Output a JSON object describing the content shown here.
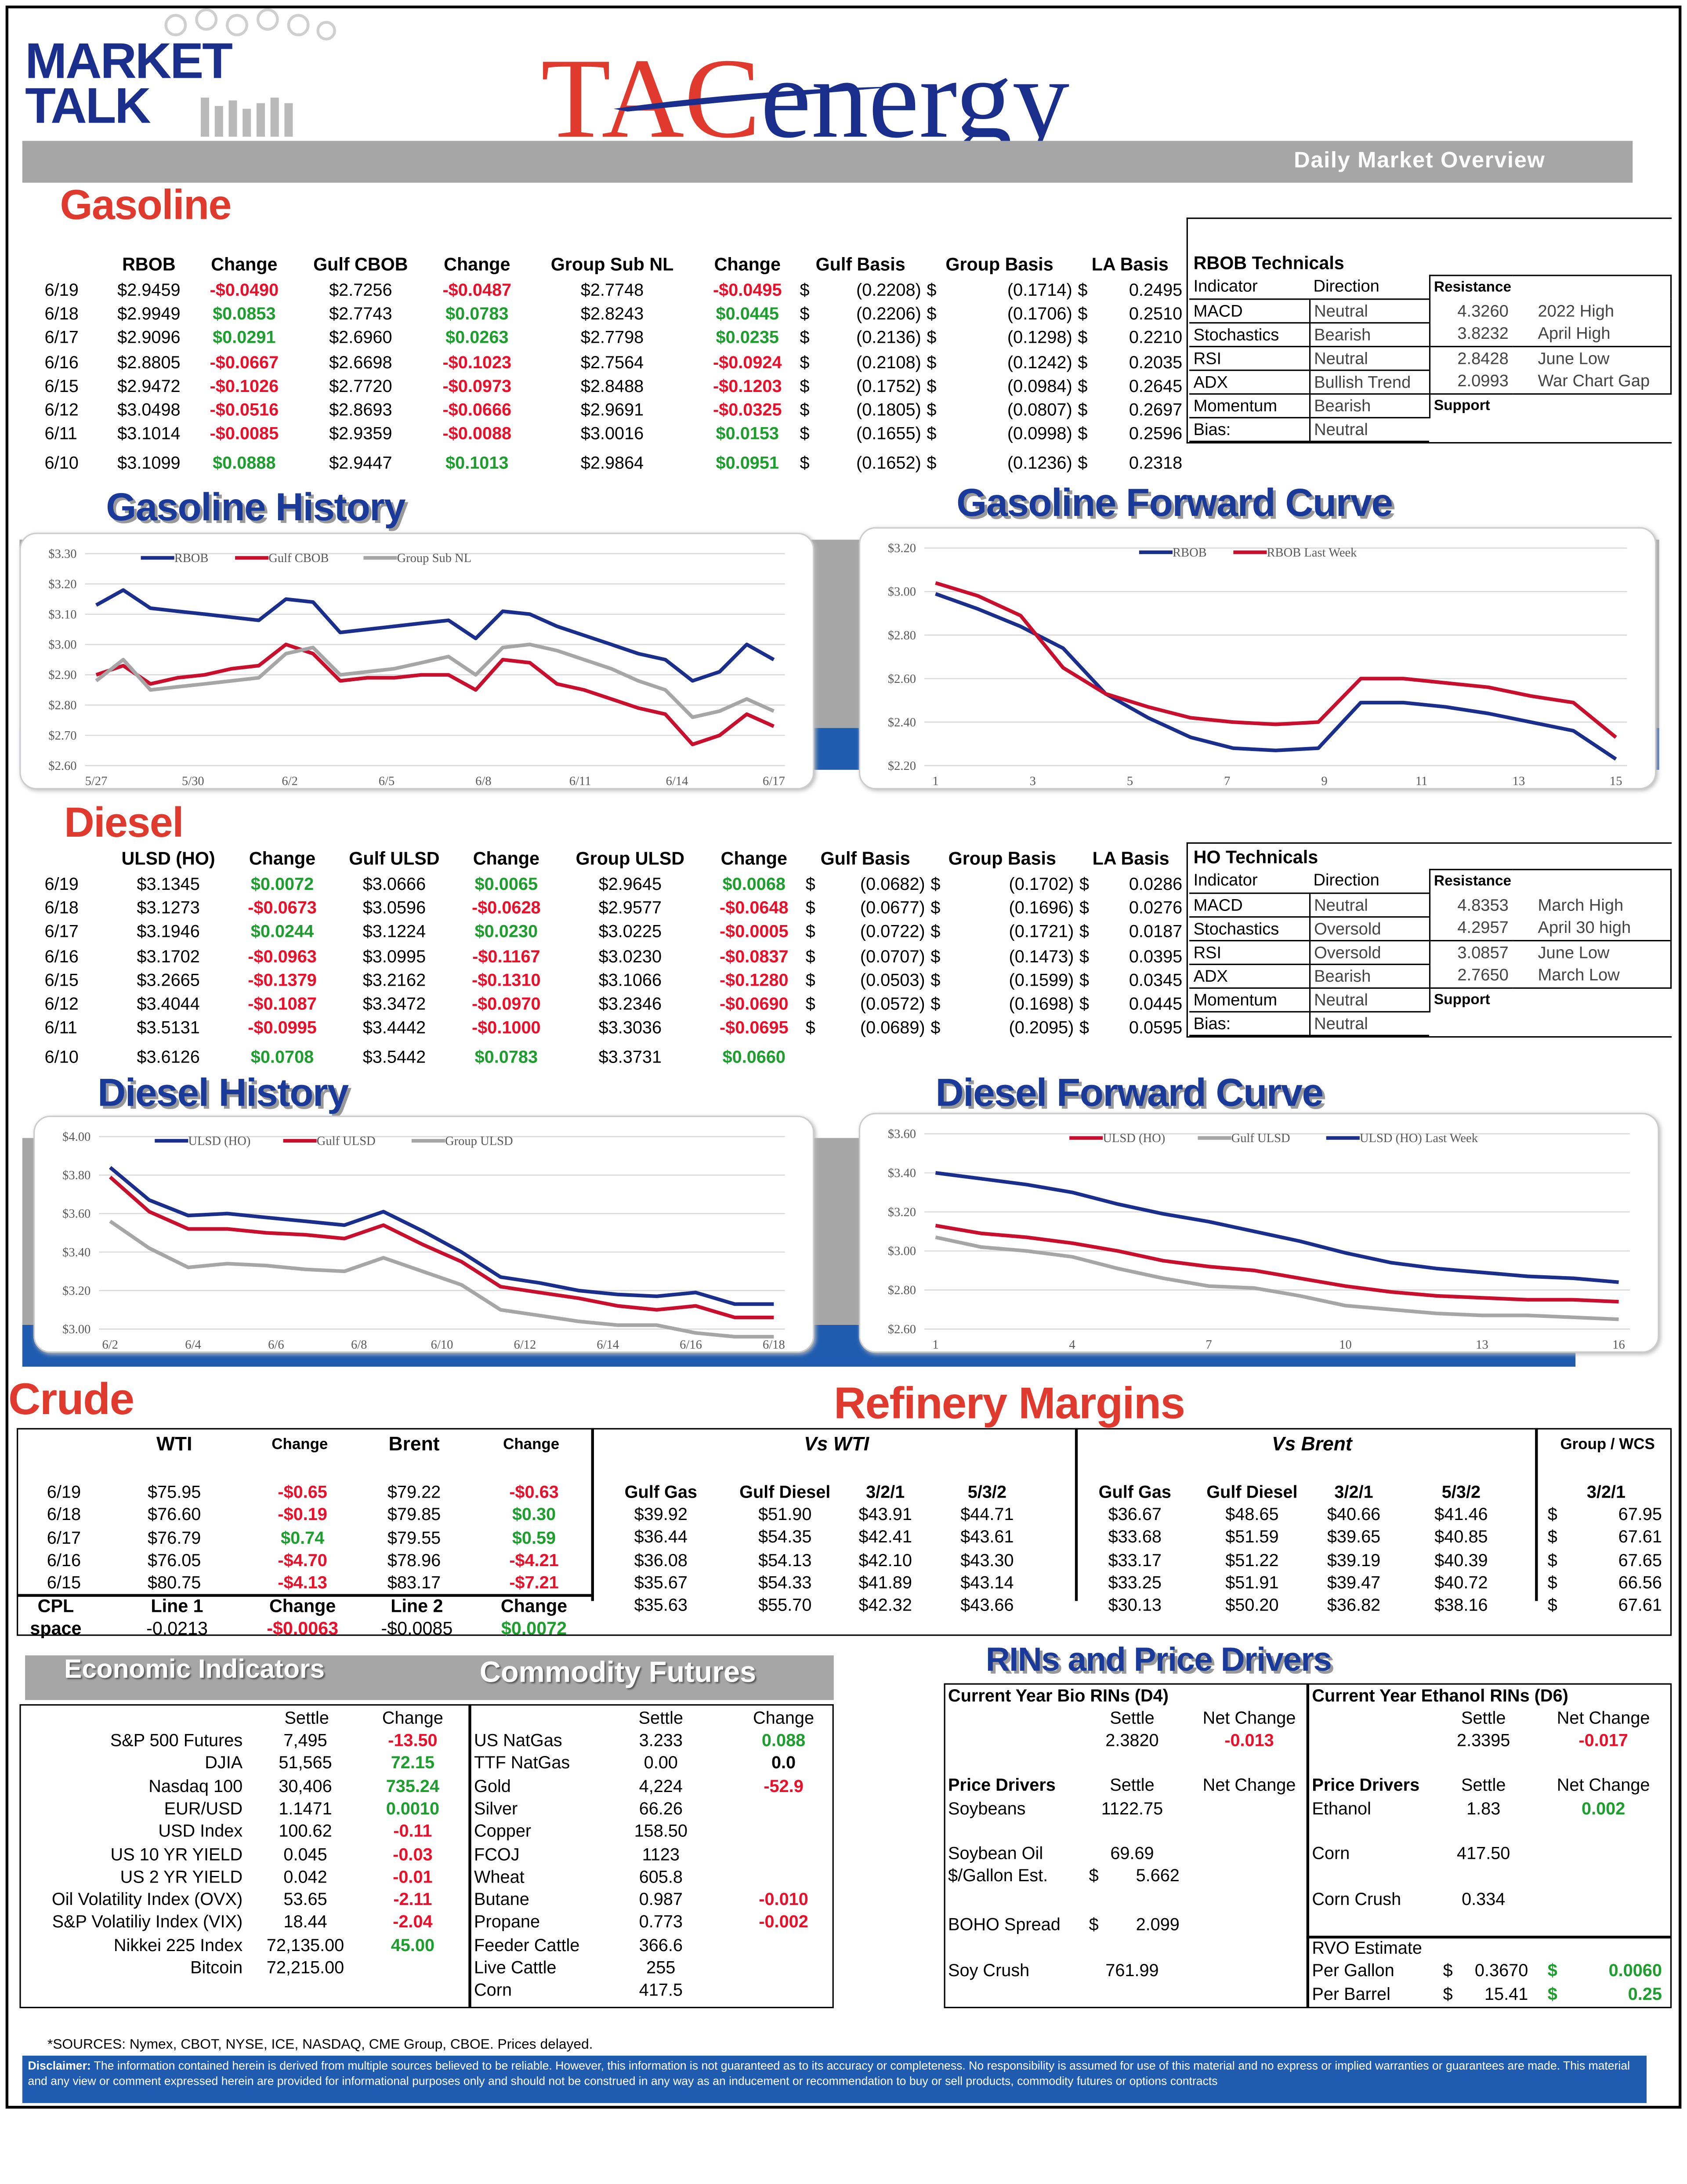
{
  "header": {
    "brand_line1": "MARKET",
    "brand_line2": "TALK",
    "logo_tac": "TAC",
    "logo_energy": "energy",
    "subtitle": "Daily Market Overview"
  },
  "sections": {
    "gasoline": "Gasoline",
    "gasoline_history": "Gasoline History",
    "gasoline_forward": "Gasoline Forward Curve",
    "diesel": "Diesel",
    "diesel_history": "Diesel History",
    "diesel_forward": "Diesel Forward Curve",
    "crude": "Crude",
    "refinery": "Refinery Margins",
    "econ": "Economic Indicators",
    "commod": "Commodity Futures",
    "rins": "RINs and Price Drivers"
  },
  "gasoline": {
    "headers": [
      "RBOB",
      "Change",
      "Gulf CBOB",
      "Change",
      "Group Sub NL",
      "Change",
      "Gulf Basis",
      "Group Basis",
      "LA Basis"
    ],
    "rows": [
      [
        "6/19",
        "$2.9459",
        "-$0.0490",
        "$2.7256",
        "-$0.0487",
        "$2.7748",
        "-$0.0495",
        "(0.2208)",
        "(0.1714)",
        "0.2495"
      ],
      [
        "6/18",
        "$2.9949",
        "$0.0853",
        "$2.7743",
        "$0.0783",
        "$2.8243",
        "$0.0445",
        "(0.2206)",
        "(0.1706)",
        "0.2510"
      ],
      [
        "6/17",
        "$2.9096",
        "$0.0291",
        "$2.6960",
        "$0.0263",
        "$2.7798",
        "$0.0235",
        "(0.2136)",
        "(0.1298)",
        "0.2210"
      ],
      [
        "6/16",
        "$2.8805",
        "-$0.0667",
        "$2.6698",
        "-$0.1023",
        "$2.7564",
        "-$0.0924",
        "(0.2108)",
        "(0.1242)",
        "0.2035"
      ],
      [
        "6/15",
        "$2.9472",
        "-$0.1026",
        "$2.7720",
        "-$0.0973",
        "$2.8488",
        "-$0.1203",
        "(0.1752)",
        "(0.0984)",
        "0.2645"
      ],
      [
        "6/12",
        "$3.0498",
        "-$0.0516",
        "$2.8693",
        "-$0.0666",
        "$2.9691",
        "-$0.0325",
        "(0.1805)",
        "(0.0807)",
        "0.2697"
      ],
      [
        "6/11",
        "$3.1014",
        "-$0.0085",
        "$2.9359",
        "-$0.0088",
        "$3.0016",
        "$0.0153",
        "(0.1655)",
        "(0.0998)",
        "0.2596"
      ],
      [
        "6/10",
        "$3.1099",
        "$0.0888",
        "$2.9447",
        "$0.1013",
        "$2.9864",
        "$0.0951",
        "(0.1652)",
        "(0.1236)",
        "0.2318"
      ]
    ],
    "tech_title": "RBOB Technicals",
    "tech_h": [
      "Indicator",
      "Direction",
      "Resistance",
      "Support"
    ],
    "tech": [
      [
        "MACD",
        "Neutral"
      ],
      [
        "Stochastics",
        "Bearish"
      ],
      [
        "RSI",
        "Neutral"
      ],
      [
        "ADX",
        "Bullish Trend"
      ],
      [
        "Momentum",
        "Bearish"
      ],
      [
        "Bias:",
        "Neutral"
      ]
    ],
    "levels": [
      [
        "4.3260",
        "2022 High"
      ],
      [
        "3.8232",
        "April High"
      ],
      [
        "2.8428",
        "June Low"
      ],
      [
        "2.0993",
        "War Chart Gap"
      ]
    ]
  },
  "diesel": {
    "headers": [
      "ULSD (HO)",
      "Change",
      "Gulf ULSD",
      "Change",
      "Group ULSD",
      "Change",
      "Gulf Basis",
      "Group Basis",
      "LA Basis"
    ],
    "rows": [
      [
        "6/19",
        "$3.1345",
        "$0.0072",
        "$3.0666",
        "$0.0065",
        "$2.9645",
        "$0.0068",
        "(0.0682)",
        "(0.1702)",
        "0.0286"
      ],
      [
        "6/18",
        "$3.1273",
        "-$0.0673",
        "$3.0596",
        "-$0.0628",
        "$2.9577",
        "-$0.0648",
        "(0.0677)",
        "(0.1696)",
        "0.0276"
      ],
      [
        "6/17",
        "$3.1946",
        "$0.0244",
        "$3.1224",
        "$0.0230",
        "$3.0225",
        "-$0.0005",
        "(0.0722)",
        "(0.1721)",
        "0.0187"
      ],
      [
        "6/16",
        "$3.1702",
        "-$0.0963",
        "$3.0995",
        "-$0.1167",
        "$3.0230",
        "-$0.0837",
        "(0.0707)",
        "(0.1473)",
        "0.0395"
      ],
      [
        "6/15",
        "$3.2665",
        "-$0.1379",
        "$3.2162",
        "-$0.1310",
        "$3.1066",
        "-$0.1280",
        "(0.0503)",
        "(0.1599)",
        "0.0345"
      ],
      [
        "6/12",
        "$3.4044",
        "-$0.1087",
        "$3.3472",
        "-$0.0970",
        "$3.2346",
        "-$0.0690",
        "(0.0572)",
        "(0.1698)",
        "0.0445"
      ],
      [
        "6/11",
        "$3.5131",
        "-$0.0995",
        "$3.4442",
        "-$0.1000",
        "$3.3036",
        "-$0.0695",
        "(0.0689)",
        "(0.2095)",
        "0.0595"
      ],
      [
        "6/10",
        "$3.6126",
        "$0.0708",
        "$3.5442",
        "$0.0783",
        "$3.3731",
        "$0.0660",
        "",
        "",
        ""
      ]
    ],
    "tech_title": "HO Technicals",
    "tech_h": [
      "Indicator",
      "Direction",
      "Resistance",
      "Support"
    ],
    "tech": [
      [
        "MACD",
        "Neutral"
      ],
      [
        "Stochastics",
        "Oversold"
      ],
      [
        "RSI",
        "Oversold"
      ],
      [
        "ADX",
        "Bearish"
      ],
      [
        "Momentum",
        "Neutral"
      ],
      [
        "Bias:",
        "Neutral"
      ]
    ],
    "levels": [
      [
        "4.8353",
        "March High"
      ],
      [
        "4.2957",
        "April 30 high"
      ],
      [
        "3.0857",
        "June Low"
      ],
      [
        "2.7650",
        "March Low"
      ]
    ]
  },
  "chart_data": [
    {
      "id": "gas_hist",
      "type": "line",
      "xlabels": [
        "5/27",
        "5/30",
        "6/2",
        "6/5",
        "6/8",
        "6/11",
        "6/14",
        "6/17"
      ],
      "ylabels": [
        "$2.60",
        "$2.70",
        "$2.80",
        "$2.90",
        "$3.00",
        "$3.10",
        "$3.20",
        "$3.30"
      ],
      "ylim": [
        2.6,
        3.3
      ],
      "legend": "top-left",
      "series": [
        {
          "name": "RBOB",
          "color": "#1a2e8c",
          "values": [
            3.13,
            3.18,
            3.12,
            3.11,
            3.1,
            3.09,
            3.08,
            3.15,
            3.14,
            3.04,
            3.05,
            3.06,
            3.07,
            3.08,
            3.02,
            3.11,
            3.1,
            3.06,
            3.03,
            3.0,
            2.97,
            2.95,
            2.88,
            2.91,
            3.0,
            2.95
          ]
        },
        {
          "name": "Gulf CBOB",
          "color": "#c8102e",
          "values": [
            2.9,
            2.93,
            2.87,
            2.89,
            2.9,
            2.92,
            2.93,
            3.0,
            2.97,
            2.88,
            2.89,
            2.89,
            2.9,
            2.9,
            2.85,
            2.95,
            2.94,
            2.87,
            2.85,
            2.82,
            2.79,
            2.77,
            2.67,
            2.7,
            2.77,
            2.73
          ]
        },
        {
          "name": "Group Sub NL",
          "color": "#a6a6a6",
          "values": [
            2.88,
            2.95,
            2.85,
            2.86,
            2.87,
            2.88,
            2.89,
            2.97,
            2.99,
            2.9,
            2.91,
            2.92,
            2.94,
            2.96,
            2.9,
            2.99,
            3.0,
            2.98,
            2.95,
            2.92,
            2.88,
            2.85,
            2.76,
            2.78,
            2.82,
            2.78
          ]
        }
      ]
    },
    {
      "id": "gas_fwd",
      "type": "line",
      "xlabels": [
        "1",
        "3",
        "5",
        "7",
        "9",
        "11",
        "13",
        "15"
      ],
      "ylabels": [
        "$2.20",
        "$2.40",
        "$2.60",
        "$2.80",
        "$3.00",
        "$3.20"
      ],
      "ylim": [
        2.2,
        3.2
      ],
      "legend": "top",
      "series": [
        {
          "name": "RBOB",
          "color": "#1a2e8c",
          "values": [
            2.99,
            2.92,
            2.84,
            2.74,
            2.53,
            2.42,
            2.33,
            2.28,
            2.27,
            2.28,
            2.49,
            2.49,
            2.47,
            2.44,
            2.4,
            2.36,
            2.23
          ]
        },
        {
          "name": "RBOB Last Week",
          "color": "#c8102e",
          "values": [
            3.04,
            2.98,
            2.89,
            2.65,
            2.53,
            2.47,
            2.42,
            2.4,
            2.39,
            2.4,
            2.6,
            2.6,
            2.58,
            2.56,
            2.52,
            2.49,
            2.33
          ]
        }
      ]
    },
    {
      "id": "ds_hist",
      "type": "line",
      "xlabels": [
        "6/2",
        "6/4",
        "6/6",
        "6/8",
        "6/10",
        "6/12",
        "6/14",
        "6/16",
        "6/18"
      ],
      "ylabels": [
        "$3.00",
        "$3.20",
        "$3.40",
        "$3.60",
        "$3.80",
        "$4.00"
      ],
      "ylim": [
        3.0,
        4.0
      ],
      "legend": "top-left",
      "series": [
        {
          "name": "ULSD (HO)",
          "color": "#1a2e8c",
          "values": [
            3.84,
            3.67,
            3.59,
            3.6,
            3.58,
            3.56,
            3.54,
            3.61,
            3.51,
            3.4,
            3.27,
            3.24,
            3.2,
            3.18,
            3.17,
            3.19,
            3.13,
            3.13
          ]
        },
        {
          "name": "Gulf ULSD",
          "color": "#c8102e",
          "values": [
            3.79,
            3.61,
            3.52,
            3.52,
            3.5,
            3.49,
            3.47,
            3.54,
            3.44,
            3.35,
            3.22,
            3.19,
            3.16,
            3.12,
            3.1,
            3.12,
            3.06,
            3.06
          ]
        },
        {
          "name": "Group ULSD",
          "color": "#a6a6a6",
          "values": [
            3.56,
            3.42,
            3.32,
            3.34,
            3.33,
            3.31,
            3.3,
            3.37,
            3.3,
            3.23,
            3.1,
            3.07,
            3.04,
            3.02,
            3.02,
            2.98,
            2.96,
            2.96
          ]
        }
      ]
    },
    {
      "id": "ds_fwd",
      "type": "line",
      "xlabels": [
        "1",
        "4",
        "7",
        "10",
        "13",
        "16"
      ],
      "ylabels": [
        "$2.60",
        "$2.80",
        "$3.00",
        "$3.20",
        "$3.40",
        "$3.60"
      ],
      "ylim": [
        2.6,
        3.6
      ],
      "legend": "top",
      "series": [
        {
          "name": "ULSD (HO)",
          "color": "#c8102e",
          "values": [
            3.13,
            3.09,
            3.07,
            3.04,
            3.0,
            2.95,
            2.92,
            2.9,
            2.86,
            2.82,
            2.79,
            2.77,
            2.76,
            2.75,
            2.75,
            2.74
          ]
        },
        {
          "name": "Gulf ULSD",
          "color": "#a6a6a6",
          "values": [
            3.07,
            3.02,
            3.0,
            2.97,
            2.91,
            2.86,
            2.82,
            2.81,
            2.77,
            2.72,
            2.7,
            2.68,
            2.67,
            2.67,
            2.66,
            2.65
          ]
        },
        {
          "name": "ULSD (HO) Last Week",
          "color": "#1a2e8c",
          "values": [
            3.4,
            3.37,
            3.34,
            3.3,
            3.24,
            3.19,
            3.15,
            3.1,
            3.05,
            2.99,
            2.94,
            2.91,
            2.89,
            2.87,
            2.86,
            2.84
          ]
        }
      ]
    }
  ],
  "crude": {
    "headers": [
      "WTI",
      "Change",
      "Brent",
      "Change"
    ],
    "rows": [
      [
        "6/19",
        "$75.95",
        "-$0.65",
        "$79.22",
        "-$0.63"
      ],
      [
        "6/18",
        "$76.60",
        "-$0.19",
        "$79.85",
        "$0.30"
      ],
      [
        "6/17",
        "$76.79",
        "$0.74",
        "$79.55",
        "$0.59"
      ],
      [
        "6/16",
        "$76.05",
        "-$4.70",
        "$78.96",
        "-$4.21"
      ],
      [
        "6/15",
        "$80.75",
        "-$4.13",
        "$83.17",
        "-$7.21"
      ]
    ],
    "cpl_h": [
      "CPL",
      "Line 1",
      "Change",
      "Line 2",
      "Change"
    ],
    "cpl": [
      "space",
      "-0.0213",
      "-$0.0063",
      "-$0.0085",
      "$0.0072"
    ]
  },
  "refinery": {
    "vs_wti": "Vs WTI",
    "vs_brent": "Vs Brent",
    "group_wcs": "Group / WCS",
    "headers": [
      "Gulf Gas",
      "Gulf Diesel",
      "3/2/1",
      "5/3/2",
      "Gulf Gas",
      "Gulf Diesel",
      "3/2/1",
      "5/3/2",
      "3/2/1"
    ],
    "rows": [
      [
        "$39.92",
        "$51.90",
        "$43.91",
        "$44.71",
        "$36.67",
        "$48.65",
        "$40.66",
        "$41.46",
        "67.95"
      ],
      [
        "$36.44",
        "$54.35",
        "$42.41",
        "$43.61",
        "$33.68",
        "$51.59",
        "$39.65",
        "$40.85",
        "67.61"
      ],
      [
        "$36.08",
        "$54.13",
        "$42.10",
        "$43.30",
        "$33.17",
        "$51.22",
        "$39.19",
        "$40.39",
        "67.65"
      ],
      [
        "$35.67",
        "$54.33",
        "$41.89",
        "$43.14",
        "$33.25",
        "$51.91",
        "$39.47",
        "$40.72",
        "66.56"
      ],
      [
        "$35.63",
        "$55.70",
        "$42.32",
        "$43.66",
        "$30.13",
        "$50.20",
        "$36.82",
        "$38.16",
        "67.61"
      ]
    ]
  },
  "econ": {
    "h": [
      "Settle",
      "Change"
    ],
    "rows": [
      [
        "S&P 500 Futures",
        "7,495",
        "-13.50"
      ],
      [
        "DJIA",
        "51,565",
        "72.15"
      ],
      [
        "Nasdaq 100",
        "30,406",
        "735.24"
      ],
      [
        "EUR/USD",
        "1.1471",
        "0.0010"
      ],
      [
        "USD Index",
        "100.62",
        "-0.11"
      ],
      [
        "US 10 YR YIELD",
        "0.045",
        "-0.03"
      ],
      [
        "US 2 YR YIELD",
        "0.042",
        "-0.01"
      ],
      [
        "Oil Volatility Index (OVX)",
        "53.65",
        "-2.11"
      ],
      [
        "S&P Volatiliy Index (VIX)",
        "18.44",
        "-2.04"
      ],
      [
        "Nikkei 225 Index",
        "72,135.00",
        "45.00"
      ],
      [
        "Bitcoin",
        "72,215.00",
        ""
      ]
    ]
  },
  "commod": {
    "h": [
      "Settle",
      "Change"
    ],
    "rows": [
      [
        "US NatGas",
        "3.233",
        "0.088"
      ],
      [
        "TTF NatGas",
        "0.00",
        "0.0"
      ],
      [
        "Gold",
        "4,224",
        "-52.9"
      ],
      [
        "Silver",
        "66.26",
        ""
      ],
      [
        "Copper",
        "158.50",
        ""
      ],
      [
        "FCOJ",
        "1123",
        ""
      ],
      [
        "Wheat",
        "605.8",
        ""
      ],
      [
        "Butane",
        "0.987",
        "-0.010"
      ],
      [
        "Propane",
        "0.773",
        "-0.002"
      ],
      [
        "Feeder Cattle",
        "366.6",
        ""
      ],
      [
        "Live Cattle",
        "255",
        ""
      ],
      [
        "Corn",
        "417.5",
        ""
      ]
    ]
  },
  "rins": {
    "d4_title": "Current Year Bio RINs (D4)",
    "d6_title": "Current Year Ethanol RINs (D6)",
    "settle": "Settle",
    "net": "Net Change",
    "d4": [
      "2.3820",
      "-0.013"
    ],
    "d6": [
      "2.3395",
      "-0.017"
    ],
    "pd": "Price Drivers",
    "left": [
      [
        "Soybeans",
        "1122.75"
      ],
      [
        "Soybean Oil",
        "69.69"
      ],
      [
        "$/Gallon Est.",
        "$",
        "5.662"
      ],
      [
        "BOHO Spread",
        "$",
        "2.099"
      ],
      [
        "Soy Crush",
        "761.99"
      ]
    ],
    "right": [
      [
        "Ethanol",
        "1.83",
        "0.002"
      ],
      [
        "Corn",
        "417.50"
      ],
      [
        "Corn Crush",
        "0.334"
      ]
    ],
    "rvo": "RVO Estimate",
    "rvo_rows": [
      [
        "Per Gallon",
        "$",
        "0.3670",
        "$",
        "0.0060"
      ],
      [
        "Per Barrel",
        "$",
        "15.41",
        "$",
        "0.25"
      ]
    ]
  },
  "footer": {
    "sources": "*SOURCES: Nymex, CBOT, NYSE, ICE, NASDAQ, CME Group, CBOE.   Prices delayed.",
    "disc_label": "Disclaimer:",
    "disc": " The information contained herein is derived from multiple sources believed to be reliable. However, this information is not guaranteed as to its accuracy or completeness. No responsibility is assumed for use of this material and no express or implied warranties or guarantees are made. This material and any view or comment expressed herein are provided for informational purposes only and should not be construed in any way as an inducement or recommendation to buy or sell products, commodity futures or options contracts"
  }
}
